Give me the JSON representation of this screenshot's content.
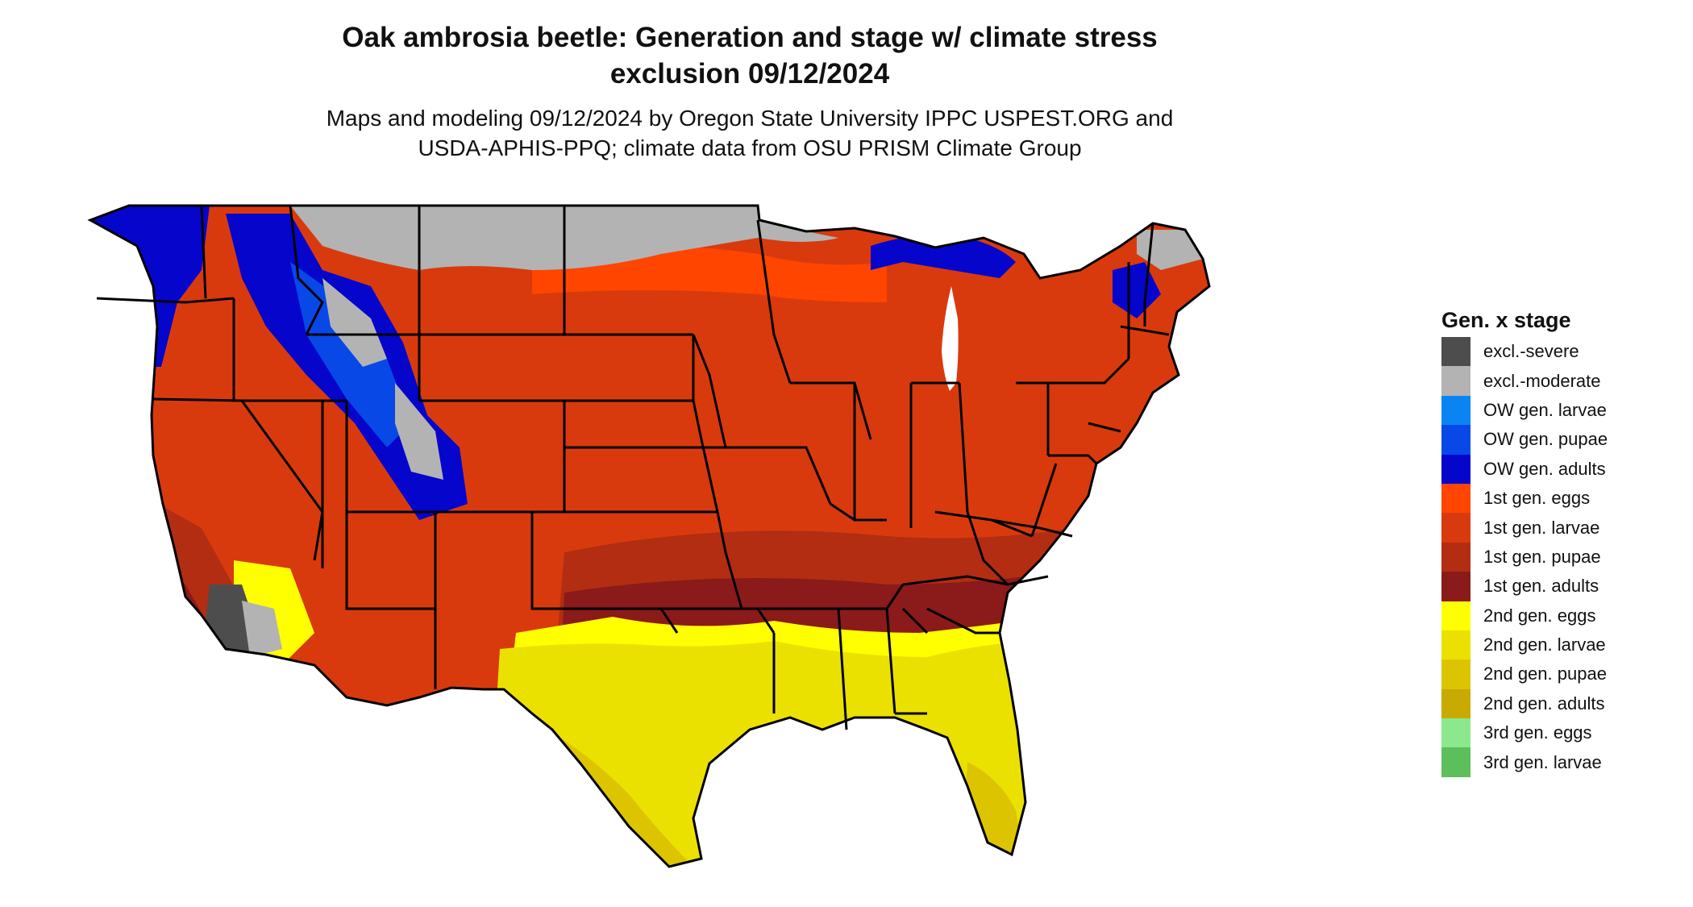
{
  "title": {
    "line1": "Oak ambrosia beetle: Generation and stage w/ climate stress",
    "line2": "exclusion 09/12/2024"
  },
  "subtitle": {
    "line1": "Maps and modeling 09/12/2024 by Oregon State University IPPC USPEST.ORG and",
    "line2": "USDA-APHIS-PPQ; climate data from OSU PRISM Climate Group"
  },
  "legend": {
    "title": "Gen. x stage",
    "items": [
      {
        "label": "excl.-severe",
        "color": "#4d4d4d"
      },
      {
        "label": "excl.-moderate",
        "color": "#b3b3b3"
      },
      {
        "label": "OW gen. larvae",
        "color": "#0a84f2"
      },
      {
        "label": "OW gen. pupae",
        "color": "#0848e6"
      },
      {
        "label": "OW gen. adults",
        "color": "#0505cc"
      },
      {
        "label": "1st gen. eggs",
        "color": "#ff4500"
      },
      {
        "label": "1st gen. larvae",
        "color": "#d93a0d"
      },
      {
        "label": "1st gen. pupae",
        "color": "#b22d12"
      },
      {
        "label": "1st gen. adults",
        "color": "#8b1a1a"
      },
      {
        "label": "2nd gen. eggs",
        "color": "#ffff00"
      },
      {
        "label": "2nd gen. larvae",
        "color": "#ebe100"
      },
      {
        "label": "2nd gen. pupae",
        "color": "#dcc500"
      },
      {
        "label": "2nd gen. adults",
        "color": "#c9aa00"
      },
      {
        "label": "3rd gen. eggs",
        "color": "#8ce88c"
      },
      {
        "label": "3rd gen. larvae",
        "color": "#5cbf5c"
      }
    ]
  }
}
